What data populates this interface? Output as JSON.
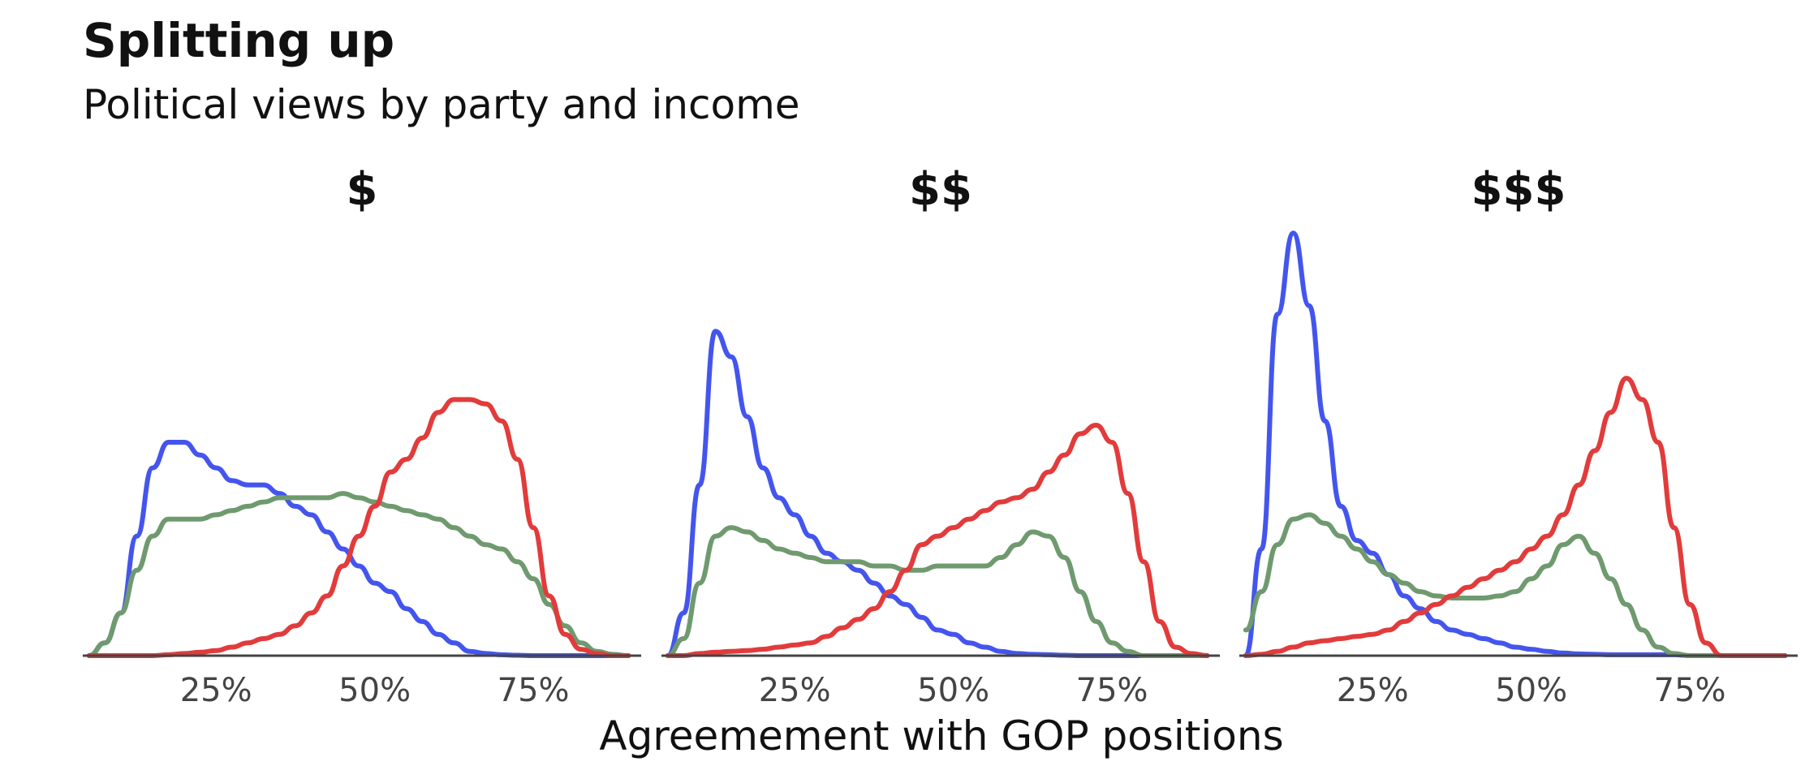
{
  "title": "Splitting up",
  "subtitle": "Political views by party and income",
  "chart_data": {
    "type": "line",
    "subtype": "density",
    "xlabel": "Agreemement with GOP positions",
    "xticks": [
      "25%",
      "50%",
      "75%"
    ],
    "xlim": [
      0.04,
      0.92
    ],
    "ylim": [
      0,
      1.0
    ],
    "grid": false,
    "legend": "none",
    "x": [
      0.05,
      0.075,
      0.1,
      0.125,
      0.15,
      0.175,
      0.2,
      0.225,
      0.25,
      0.275,
      0.3,
      0.325,
      0.35,
      0.375,
      0.4,
      0.425,
      0.45,
      0.475,
      0.5,
      0.525,
      0.55,
      0.575,
      0.6,
      0.625,
      0.65,
      0.675,
      0.7,
      0.725,
      0.75,
      0.775,
      0.8,
      0.825,
      0.85,
      0.875,
      0.9
    ],
    "facets": [
      {
        "label": "$",
        "series": [
          {
            "color": "#4455ee",
            "values": [
              0.0,
              0.03,
              0.1,
              0.28,
              0.44,
              0.5,
              0.5,
              0.47,
              0.44,
              0.41,
              0.4,
              0.4,
              0.38,
              0.35,
              0.33,
              0.29,
              0.25,
              0.21,
              0.17,
              0.15,
              0.11,
              0.08,
              0.05,
              0.03,
              0.01,
              0.005,
              0.002,
              0.001,
              0.0,
              0.0,
              0.0,
              0.0,
              0.0,
              0.0,
              0.0
            ]
          },
          {
            "color": "#6f9a6f",
            "values": [
              0.0,
              0.03,
              0.1,
              0.2,
              0.28,
              0.32,
              0.32,
              0.32,
              0.33,
              0.34,
              0.35,
              0.36,
              0.37,
              0.37,
              0.37,
              0.37,
              0.38,
              0.37,
              0.36,
              0.35,
              0.34,
              0.33,
              0.32,
              0.3,
              0.28,
              0.26,
              0.25,
              0.22,
              0.18,
              0.12,
              0.07,
              0.03,
              0.01,
              0.003,
              0.0
            ]
          },
          {
            "color": "#e23b3b",
            "values": [
              0.0,
              0.0,
              0.0,
              0.0,
              0.0,
              0.002,
              0.005,
              0.008,
              0.012,
              0.02,
              0.03,
              0.04,
              0.05,
              0.07,
              0.1,
              0.14,
              0.21,
              0.28,
              0.35,
              0.43,
              0.46,
              0.51,
              0.57,
              0.6,
              0.6,
              0.59,
              0.55,
              0.46,
              0.3,
              0.14,
              0.05,
              0.015,
              0.005,
              0.0,
              0.0
            ]
          }
        ]
      },
      {
        "label": "$$",
        "series": [
          {
            "color": "#4455ee",
            "values": [
              0.0,
              0.1,
              0.4,
              0.76,
              0.7,
              0.56,
              0.44,
              0.37,
              0.33,
              0.28,
              0.24,
              0.22,
              0.2,
              0.17,
              0.14,
              0.12,
              0.09,
              0.06,
              0.05,
              0.03,
              0.02,
              0.01,
              0.005,
              0.003,
              0.002,
              0.001,
              0.0,
              0.0,
              0.0,
              0.0,
              0.0,
              0.0,
              0.0,
              0.0,
              0.0
            ]
          },
          {
            "color": "#6f9a6f",
            "values": [
              0.0,
              0.04,
              0.17,
              0.28,
              0.3,
              0.29,
              0.27,
              0.25,
              0.24,
              0.23,
              0.22,
              0.22,
              0.22,
              0.21,
              0.21,
              0.2,
              0.2,
              0.21,
              0.21,
              0.21,
              0.21,
              0.23,
              0.26,
              0.29,
              0.28,
              0.23,
              0.15,
              0.08,
              0.03,
              0.01,
              0.0,
              0.0,
              0.0,
              0.0,
              0.0
            ]
          },
          {
            "color": "#e23b3b",
            "values": [
              0.0,
              0.0,
              0.005,
              0.008,
              0.01,
              0.012,
              0.015,
              0.02,
              0.025,
              0.03,
              0.045,
              0.065,
              0.085,
              0.11,
              0.15,
              0.2,
              0.26,
              0.28,
              0.3,
              0.32,
              0.34,
              0.36,
              0.37,
              0.39,
              0.43,
              0.47,
              0.52,
              0.54,
              0.5,
              0.38,
              0.22,
              0.08,
              0.02,
              0.005,
              0.0
            ]
          }
        ]
      },
      {
        "label": "$$$",
        "series": [
          {
            "color": "#4455ee",
            "values": [
              0.0,
              0.25,
              0.8,
              0.99,
              0.82,
              0.55,
              0.35,
              0.27,
              0.24,
              0.19,
              0.14,
              0.11,
              0.08,
              0.06,
              0.05,
              0.04,
              0.03,
              0.02,
              0.015,
              0.01,
              0.006,
              0.004,
              0.003,
              0.002,
              0.002,
              0.002,
              0.002,
              0.002,
              0.0,
              0.0,
              0.0,
              0.0,
              0.0,
              0.0,
              0.0
            ]
          },
          {
            "color": "#6f9a6f",
            "values": [
              0.06,
              0.15,
              0.26,
              0.32,
              0.33,
              0.31,
              0.28,
              0.25,
              0.22,
              0.19,
              0.17,
              0.15,
              0.14,
              0.135,
              0.135,
              0.135,
              0.14,
              0.15,
              0.18,
              0.21,
              0.26,
              0.28,
              0.24,
              0.18,
              0.12,
              0.06,
              0.02,
              0.005,
              0.0,
              0.0,
              0.0,
              0.0,
              0.0,
              0.0,
              0.0
            ]
          },
          {
            "color": "#e23b3b",
            "values": [
              0.0,
              0.003,
              0.01,
              0.02,
              0.03,
              0.035,
              0.04,
              0.045,
              0.05,
              0.06,
              0.08,
              0.1,
              0.12,
              0.14,
              0.16,
              0.18,
              0.2,
              0.22,
              0.25,
              0.28,
              0.33,
              0.4,
              0.48,
              0.57,
              0.65,
              0.6,
              0.5,
              0.3,
              0.12,
              0.03,
              0.0,
              0.0,
              0.0,
              0.0,
              0.0
            ]
          }
        ]
      }
    ]
  }
}
